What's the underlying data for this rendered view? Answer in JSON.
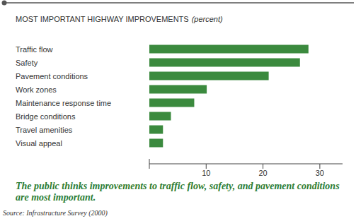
{
  "chart_data": {
    "type": "bar",
    "orientation": "horizontal",
    "title": "MOST IMPORTANT HIGHWAY IMPROVEMENTS",
    "subtitle": "(percent)",
    "categories": [
      "Traffic flow",
      "Safety",
      "Pavement conditions",
      "Work zones",
      "Maintenance response time",
      "Bridge conditions",
      "Travel amenities",
      "Visual appeal"
    ],
    "values": [
      28.0,
      26.5,
      21.0,
      10.1,
      7.9,
      3.8,
      2.4,
      2.4
    ],
    "color": "#3b8a3e",
    "xlim": [
      0,
      34
    ],
    "xticks": [
      10,
      20,
      30
    ],
    "grid": false,
    "annotations": [
      "The public thinks improvements to traffic flow, safety, and pavement conditions are most important.",
      "Source: Infrastructure Survey (2000)"
    ]
  }
}
